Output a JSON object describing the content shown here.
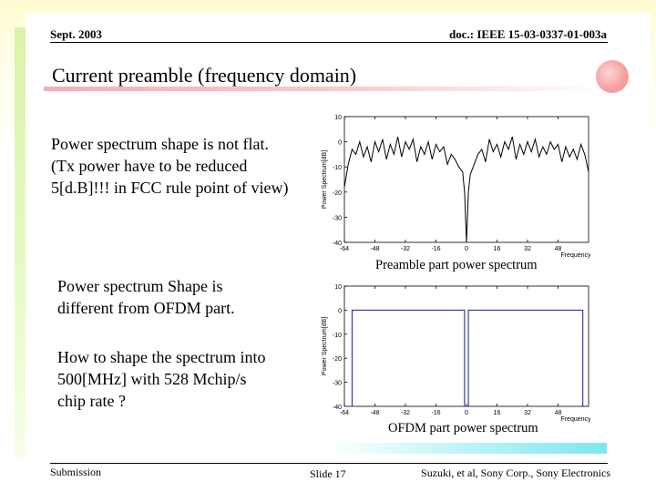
{
  "header": {
    "date": "Sept. 2003",
    "doc_id": "doc.: IEEE 15-03-0337-01-003a"
  },
  "title": "Current preamble (frequency domain)",
  "paragraphs": {
    "p1": [
      "Power spectrum shape is not flat.",
      "(Tx power have to be reduced",
      "5[d.B]!!! in FCC rule point of view)"
    ],
    "p2": [
      "Power spectrum Shape is",
      "different from OFDM part."
    ],
    "p3": [
      "How to shape the spectrum into",
      "500[MHz] with 528 Mchip/s",
      "chip rate ?"
    ]
  },
  "footer": {
    "left": "Submission",
    "center": "Slide 17",
    "right": "Suzuki, et al, Sony Corp., Sony Electronics"
  },
  "chart_data": [
    {
      "type": "line",
      "caption": "Preamble part power spectrum",
      "xlabel": "Frequency",
      "ylabel": "Power Spectrum[dB]",
      "xlim": [
        -64,
        64
      ],
      "ylim": [
        -40,
        10
      ],
      "xticks": [
        -64,
        -48,
        -32,
        -16,
        0,
        16,
        32,
        48
      ],
      "yticks": [
        10,
        0,
        -10,
        -20,
        -30,
        -40
      ],
      "ytick_labels": [
        "10",
        "0",
        "-10",
        "-20",
        "-30",
        "-40"
      ],
      "color": "#000000",
      "x": [
        -64,
        -62,
        -60,
        -58,
        -56,
        -54,
        -52,
        -50,
        -48,
        -46,
        -44,
        -42,
        -40,
        -38,
        -36,
        -34,
        -32,
        -30,
        -28,
        -26,
        -24,
        -22,
        -20,
        -18,
        -16,
        -14,
        -12,
        -10,
        -8,
        -6,
        -4,
        -2,
        -1,
        0,
        1,
        2,
        4,
        6,
        8,
        10,
        12,
        14,
        16,
        18,
        20,
        22,
        24,
        26,
        28,
        30,
        32,
        34,
        36,
        38,
        40,
        42,
        44,
        46,
        48,
        50,
        52,
        54,
        56,
        58,
        60,
        62,
        64
      ],
      "y": [
        -18,
        -9,
        -3,
        -5,
        0,
        -6,
        -2,
        -8,
        0,
        -4,
        1,
        -7,
        -1,
        -5,
        2,
        -6,
        0,
        -3,
        1,
        -8,
        -2,
        -5,
        0,
        -7,
        -1,
        -4,
        -2,
        -9,
        -5,
        -7,
        -10,
        -12,
        -20,
        -40,
        -20,
        -13,
        -9,
        -5,
        -3,
        -8,
        1,
        -4,
        -1,
        -6,
        0,
        -3,
        2,
        -7,
        -1,
        -5,
        0,
        -4,
        1,
        -6,
        -2,
        -5,
        0,
        -3,
        -1,
        -8,
        -2,
        -6,
        -3,
        -7,
        -1,
        -5,
        -12
      ]
    },
    {
      "type": "line",
      "caption": "OFDM part power spectrum",
      "xlabel": "Frequency",
      "ylabel": "Power Spectrum[dB]",
      "xlim": [
        -64,
        64
      ],
      "ylim": [
        -40,
        10
      ],
      "xticks": [
        -64,
        -48,
        -32,
        -16,
        0,
        16,
        32,
        48
      ],
      "yticks": [
        10,
        0,
        -10,
        -20,
        -30,
        -40
      ],
      "ytick_labels": [
        "10",
        "0",
        "-10",
        "-20",
        "-30",
        "-40"
      ],
      "color": "#1a1aa0",
      "x": [
        -64,
        -63,
        -63,
        -62,
        -62,
        -61,
        -61,
        -60,
        -60,
        -50,
        -40,
        -30,
        -20,
        -10,
        -1,
        -1,
        0,
        0,
        1,
        1,
        10,
        20,
        30,
        40,
        50,
        61,
        61,
        62,
        62,
        63,
        63,
        64
      ],
      "y": [
        -40,
        -40,
        -40,
        -40,
        -40,
        -40,
        -40,
        -40,
        0,
        0,
        0,
        0,
        0,
        0,
        0,
        -40,
        -40,
        -40,
        -40,
        0,
        0,
        0,
        0,
        0,
        0,
        0,
        -40,
        -40,
        -40,
        -40,
        -40,
        -40
      ]
    }
  ]
}
